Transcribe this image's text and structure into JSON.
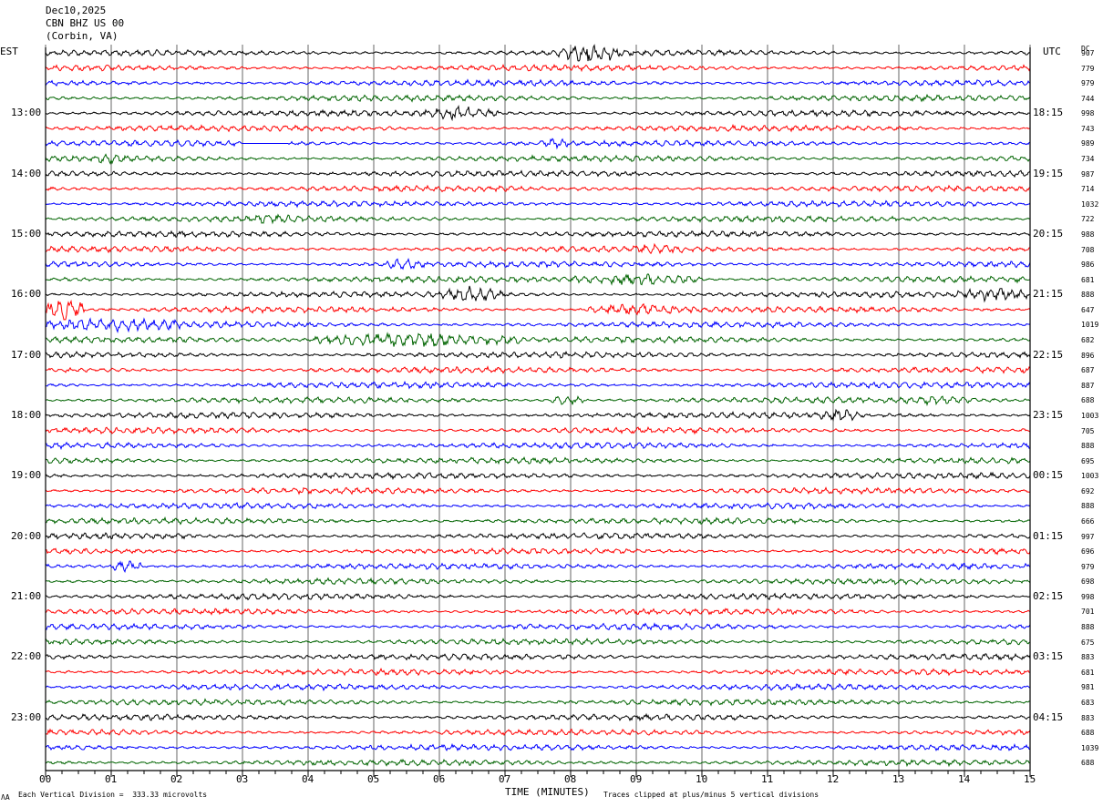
{
  "header": {
    "date": "Dec10,2025",
    "station": "CBN BHZ US 00",
    "location": "(Corbin, VA)"
  },
  "left_label": "EST",
  "right_label": "UTC",
  "dc_label": "DC",
  "footer": {
    "scale_note": "Each Vertical Division =  333.33 microvolts",
    "xlabel": "TIME (MINUTES)",
    "clip_note": "Traces clipped at plus/minus 5 vertical divisions",
    "corner_mark": "ɅA"
  },
  "colors": {
    "black": "#000000",
    "red": "#ff0000",
    "blue": "#0000ff",
    "green": "#006400",
    "grid": "#000000"
  },
  "chart_data": {
    "type": "line",
    "title": "",
    "xlabel": "TIME (MINUTES)",
    "ylabel": "",
    "xlim": [
      0,
      15
    ],
    "x_ticks": [
      "00",
      "01",
      "02",
      "03",
      "04",
      "05",
      "06",
      "07",
      "08",
      "09",
      "10",
      "11",
      "12",
      "13",
      "14",
      "15"
    ],
    "trace_count": 48,
    "trace_minutes": 15,
    "trace_color_cycle": [
      "black",
      "red",
      "blue",
      "green"
    ],
    "left_hour_labels": [
      "13:00",
      "14:00",
      "15:00",
      "16:00",
      "17:00",
      "18:00",
      "19:00",
      "20:00",
      "21:00",
      "22:00",
      "23:00"
    ],
    "right_hour_labels": [
      "18:15",
      "19:15",
      "20:15",
      "21:15",
      "22:15",
      "23:15",
      "00:15",
      "01:15",
      "02:15",
      "03:15",
      "04:15"
    ],
    "hour_label_first_trace": 4,
    "dc_offsets": [
      "907",
      "779",
      "979",
      "744",
      "998",
      "743",
      "989",
      "734",
      "987",
      "714",
      "1032",
      "722",
      "988",
      "708",
      "986",
      "681",
      "888",
      "647",
      "1019",
      "682",
      "896",
      "687",
      "887",
      "688",
      "1003",
      "705",
      "888",
      "695",
      "1003",
      "692",
      "888",
      "666",
      "997",
      "696",
      "979",
      "698",
      "998",
      "701",
      "888",
      "675",
      "883",
      "681",
      "981",
      "683",
      "883",
      "688",
      "1039",
      "688"
    ],
    "events": [
      {
        "trace": 0,
        "start_min": 7.8,
        "end_min": 8.8,
        "amplitude": 2.2
      },
      {
        "trace": 4,
        "start_min": 5.7,
        "end_min": 6.9,
        "amplitude": 1.5
      },
      {
        "trace": 6,
        "start_min": 3.0,
        "end_min": 3.7,
        "amplitude": 0.0
      },
      {
        "trace": 6,
        "start_min": 7.5,
        "end_min": 8.0,
        "amplitude": 1.2
      },
      {
        "trace": 7,
        "start_min": 0.6,
        "end_min": 1.4,
        "amplitude": 1.1
      },
      {
        "trace": 11,
        "start_min": 3.0,
        "end_min": 3.9,
        "amplitude": 1.1
      },
      {
        "trace": 13,
        "start_min": 8.8,
        "end_min": 9.8,
        "amplitude": 1.2
      },
      {
        "trace": 14,
        "start_min": 5.2,
        "end_min": 5.8,
        "amplitude": 1.4
      },
      {
        "trace": 15,
        "start_min": 8.0,
        "end_min": 10.0,
        "amplitude": 1.3
      },
      {
        "trace": 16,
        "start_min": 6.0,
        "end_min": 7.0,
        "amplitude": 1.8
      },
      {
        "trace": 16,
        "start_min": 13.9,
        "end_min": 15.0,
        "amplitude": 1.6
      },
      {
        "trace": 17,
        "start_min": 0.0,
        "end_min": 0.6,
        "amplitude": 2.6
      },
      {
        "trace": 17,
        "start_min": 8.2,
        "end_min": 10.0,
        "amplitude": 1.3
      },
      {
        "trace": 18,
        "start_min": 0.0,
        "end_min": 2.2,
        "amplitude": 1.6
      },
      {
        "trace": 19,
        "start_min": 4.1,
        "end_min": 7.3,
        "amplitude": 1.6
      },
      {
        "trace": 23,
        "start_min": 7.7,
        "end_min": 8.2,
        "amplitude": 1.1
      },
      {
        "trace": 23,
        "start_min": 12.8,
        "end_min": 14.2,
        "amplitude": 1.0
      },
      {
        "trace": 24,
        "start_min": 11.8,
        "end_min": 12.4,
        "amplitude": 1.5
      },
      {
        "trace": 34,
        "start_min": 1.0,
        "end_min": 1.5,
        "amplitude": 1.3
      }
    ]
  }
}
